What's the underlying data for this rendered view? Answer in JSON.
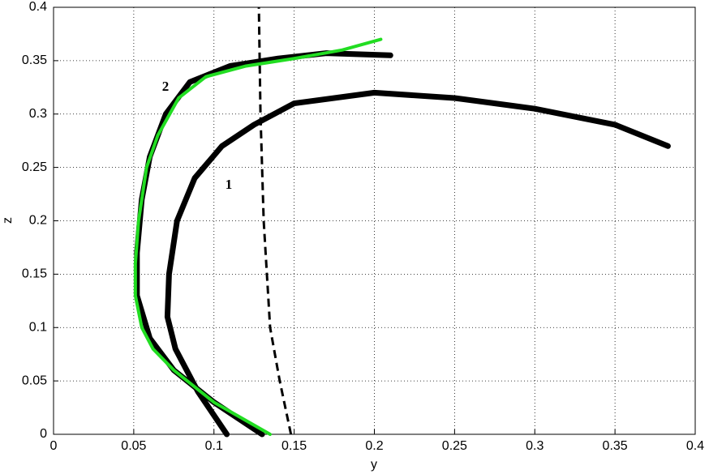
{
  "chart_data": {
    "type": "line",
    "x_label": "y",
    "y_label": "z",
    "xlim": [
      0,
      0.4
    ],
    "ylim": [
      0,
      0.4
    ],
    "xticks": [
      0,
      0.05,
      0.1,
      0.15,
      0.2,
      0.25,
      0.3,
      0.35,
      0.4
    ],
    "yticks": [
      0,
      0.05,
      0.1,
      0.15,
      0.2,
      0.25,
      0.3,
      0.35,
      0.4
    ],
    "grid": true,
    "annotations": [
      "1",
      "2"
    ],
    "series": [
      {
        "color": "#000000",
        "style": "band",
        "x": [
          0.108,
          0.09,
          0.076,
          0.071,
          0.072,
          0.077,
          0.088,
          0.105,
          0.125,
          0.15,
          0.2,
          0.25,
          0.3,
          0.35,
          0.383
        ],
        "values": [
          0,
          0.04,
          0.08,
          0.11,
          0.15,
          0.2,
          0.24,
          0.27,
          0.29,
          0.31,
          0.32,
          0.315,
          0.305,
          0.29,
          0.27
        ]
      },
      {
        "color": "#000000",
        "style": "band",
        "x": [
          0.13,
          0.1,
          0.075,
          0.06,
          0.052,
          0.052,
          0.055,
          0.06,
          0.07,
          0.085,
          0.11,
          0.14,
          0.17,
          0.21
        ],
        "values": [
          0,
          0.03,
          0.06,
          0.09,
          0.13,
          0.17,
          0.22,
          0.26,
          0.3,
          0.33,
          0.345,
          0.352,
          0.357,
          0.355
        ]
      },
      {
        "color": "#000000",
        "style": "dashed",
        "x": [
          0.148,
          0.141,
          0.135,
          0.131,
          0.129,
          0.128
        ],
        "values": [
          0,
          0.05,
          0.1,
          0.2,
          0.3,
          0.4
        ]
      },
      {
        "color": "#22dd22",
        "style": "solid",
        "x": [
          0.135,
          0.1,
          0.075,
          0.062,
          0.055,
          0.051,
          0.051,
          0.053,
          0.058,
          0.065,
          0.078,
          0.095,
          0.12,
          0.15,
          0.18,
          0.204
        ],
        "values": [
          0,
          0.03,
          0.06,
          0.08,
          0.1,
          0.13,
          0.16,
          0.2,
          0.25,
          0.28,
          0.315,
          0.335,
          0.345,
          0.352,
          0.36,
          0.37
        ]
      }
    ]
  }
}
